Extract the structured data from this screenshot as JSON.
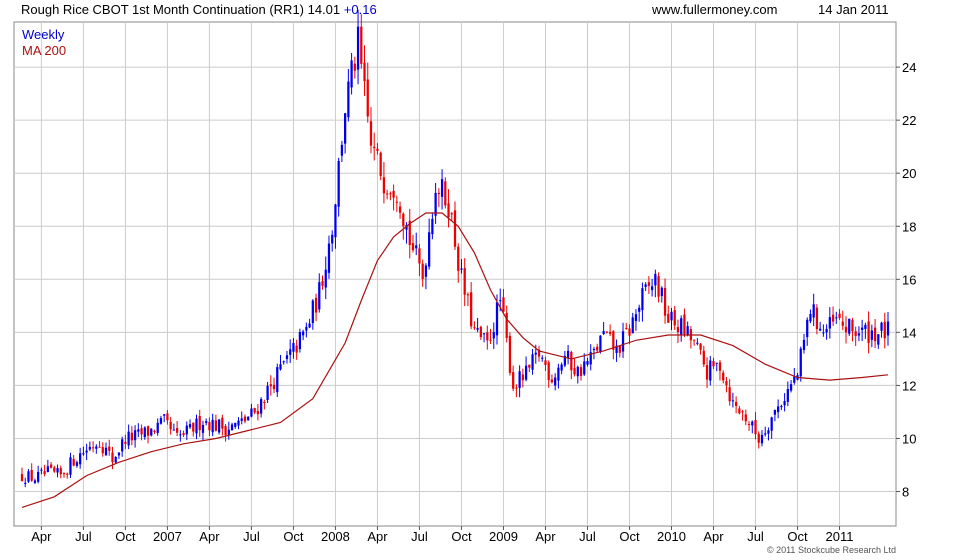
{
  "header": {
    "title": "Rough Rice CBOT 1st Month Continuation (RR1) 14.01",
    "change": "+0.16",
    "site": "www.fullermoney.com",
    "date": "14 Jan 2011"
  },
  "legend": {
    "weekly": "Weekly",
    "ma": "MA 200",
    "weekly_color": "#0000cc",
    "ma_color": "#aa1111"
  },
  "footer": {
    "copyright": "© 2011 Stockcube Research Ltd"
  },
  "colors": {
    "up": "#0000ee",
    "down": "#ee0000",
    "ma": "#aa1111",
    "grid": "#cccccc"
  },
  "chart_data": {
    "type": "candlestick",
    "title": "Rough Rice CBOT 1st Month Continuation (RR1) 14.01",
    "interval": "Weekly",
    "ylim": [
      6.7,
      25.7
    ],
    "yticks": [
      8,
      10,
      12,
      14,
      16,
      18,
      20,
      22,
      24
    ],
    "xticks": [
      "Apr",
      "Jul",
      "Oct",
      "2007",
      "Apr",
      "Jul",
      "Oct",
      "2008",
      "Apr",
      "Jul",
      "Oct",
      "2009",
      "Apr",
      "Jul",
      "Oct",
      "2010",
      "Apr",
      "Jul",
      "Oct",
      "2011"
    ],
    "grid": true,
    "y_axis_side": "right",
    "price_anchors": {
      "weeks": [
        0,
        4,
        8,
        12,
        16,
        20,
        24,
        28,
        32,
        36,
        40,
        44,
        48,
        52,
        56,
        60,
        64,
        68,
        72,
        76,
        80,
        84,
        88,
        92,
        96,
        100,
        104,
        108,
        112,
        116,
        120,
        124,
        128,
        132,
        136,
        140,
        144,
        148,
        152,
        156,
        160,
        164,
        168,
        172,
        176,
        180,
        184,
        188,
        192,
        196,
        200,
        204,
        208,
        212,
        216,
        220,
        224,
        228,
        232,
        236,
        240,
        244,
        248,
        252,
        256,
        260,
        264,
        268
      ],
      "close": [
        8.6,
        8.5,
        8.7,
        8.6,
        9.2,
        9.6,
        9.9,
        9.2,
        10.0,
        10.1,
        10.3,
        10.6,
        10.0,
        10.3,
        10.7,
        10.5,
        10.4,
        10.6,
        11.0,
        11.8,
        12.6,
        13.3,
        14.1,
        15.5,
        18.0,
        22.5,
        24.8,
        21.0,
        19.8,
        19.5,
        17.5,
        16.1,
        19.6,
        18.9,
        16.0,
        14.0,
        13.5,
        15.2,
        12.0,
        12.4,
        13.2,
        12.3,
        13.1,
        12.5,
        13.0,
        13.9,
        13.3,
        14.1,
        15.3,
        16.0,
        14.5,
        14.2,
        13.6,
        12.5,
        12.8,
        11.3,
        10.8,
        10.0,
        10.8,
        11.6,
        12.4,
        14.9,
        14.0,
        14.4,
        14.1,
        14.0,
        14.0,
        14.0
      ]
    },
    "series": [
      {
        "name": "MA 200",
        "type": "line",
        "weeks": [
          0,
          10,
          20,
          30,
          40,
          50,
          60,
          70,
          80,
          90,
          100,
          105,
          110,
          115,
          120,
          125,
          130,
          135,
          140,
          145,
          150,
          155,
          160,
          170,
          180,
          190,
          200,
          210,
          220,
          230,
          240,
          250,
          260,
          268
        ],
        "values": [
          7.4,
          7.8,
          8.6,
          9.1,
          9.5,
          9.8,
          10.0,
          10.3,
          10.6,
          11.5,
          13.6,
          15.2,
          16.7,
          17.6,
          18.1,
          18.5,
          18.5,
          18.0,
          17.0,
          15.6,
          14.5,
          13.8,
          13.3,
          13.0,
          13.3,
          13.7,
          13.9,
          13.9,
          13.5,
          12.8,
          12.3,
          12.2,
          12.3,
          12.4
        ]
      }
    ],
    "last_price": 14.01,
    "last_change": 0.16
  }
}
